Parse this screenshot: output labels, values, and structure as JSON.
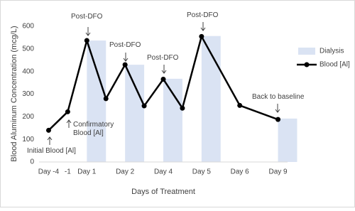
{
  "chart_data": {
    "type": "bar-line",
    "x_label": "Days of Treatment",
    "y_label": "Blood Aluminum Concentration (mcg/L)",
    "categories": [
      "Day -4",
      "-1",
      "Day 1",
      null,
      "Day 2",
      null,
      "Day 4",
      null,
      "Day 5",
      null,
      "Day 6",
      null,
      "Day 9"
    ],
    "series": [
      {
        "name": "Dialysis",
        "type": "bar",
        "color": "#dae3f3",
        "values": [
          null,
          null,
          537,
          null,
          430,
          null,
          368,
          null,
          557,
          null,
          null,
          null,
          192
        ]
      },
      {
        "name": "Blood [Al]",
        "type": "line",
        "color": "#000000",
        "values": [
          140,
          222,
          537,
          280,
          430,
          248,
          366,
          238,
          555,
          null,
          250,
          null,
          188
        ]
      }
    ],
    "ylim": [
      0,
      600
    ],
    "yticks": [
      0,
      100,
      200,
      300,
      400,
      500,
      600
    ],
    "grid": false,
    "legend": "right",
    "annotations": [
      "Post-DFO",
      "Post-DFO",
      "Post-DFO",
      "Post-DFO",
      "Confirmatory Blood [Al]",
      "Initial Blood [Al]",
      "Back to baseline"
    ]
  }
}
